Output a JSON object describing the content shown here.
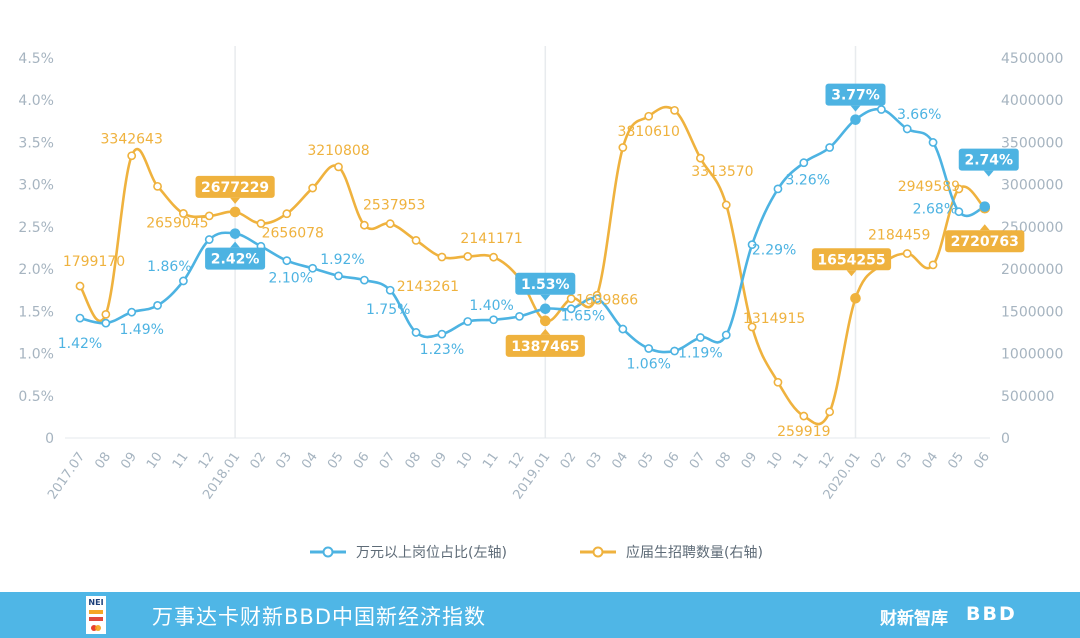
{
  "chart_data": {
    "type": "line",
    "x": [
      "2017.07",
      "08",
      "09",
      "10",
      "11",
      "12",
      "2018.01",
      "02",
      "03",
      "04",
      "05",
      "06",
      "07",
      "08",
      "09",
      "10",
      "11",
      "12",
      "2019.01",
      "02",
      "03",
      "04",
      "05",
      "06",
      "07",
      "08",
      "09",
      "10",
      "11",
      "12",
      "2020.01",
      "02",
      "03",
      "04",
      "05",
      "06"
    ],
    "left_axis": {
      "ticks": [
        "4.5%",
        "4.0%",
        "3.5%",
        "3.0%",
        "2.5%",
        "2.0%",
        "1.5%",
        "1.0%",
        "0.5%",
        "0"
      ],
      "ylim": [
        0,
        4.5
      ]
    },
    "right_axis": {
      "ticks": [
        "4500000",
        "4000000",
        "3500000",
        "3000000",
        "2500000",
        "2000000",
        "1500000",
        "1000000",
        "500000",
        "0"
      ],
      "ylim": [
        0,
        4500000
      ]
    },
    "series": [
      {
        "name": "万元以上岗位占比(左轴)",
        "axis": "left",
        "color": "#4db3e2",
        "values": [
          1.42,
          1.36,
          1.49,
          1.57,
          1.86,
          2.35,
          2.42,
          2.27,
          2.1,
          2.01,
          1.92,
          1.87,
          1.75,
          1.25,
          1.23,
          1.38,
          1.4,
          1.44,
          1.53,
          1.53,
          1.65,
          1.29,
          1.06,
          1.03,
          1.19,
          1.22,
          2.29,
          2.95,
          3.26,
          3.44,
          3.77,
          3.89,
          3.66,
          3.5,
          2.68,
          2.74
        ]
      },
      {
        "name": "应届生招聘数量(右轴)",
        "axis": "right",
        "color": "#efb23e",
        "values": [
          1799170,
          1464000,
          3342643,
          2980000,
          2659045,
          2630000,
          2677229,
          2540000,
          2656078,
          2960000,
          3210808,
          2520000,
          2537953,
          2340000,
          2143261,
          2150000,
          2141171,
          1890000,
          1387465,
          1650000,
          1689866,
          3440000,
          3810610,
          3880000,
          3313570,
          2760000,
          1314915,
          660000,
          259919,
          310000,
          1654255,
          2050000,
          2184459,
          2050000,
          2949589,
          2720763
        ]
      }
    ],
    "value_labels": {
      "left": [
        {
          "i": 0,
          "text": "1.42%",
          "style": "plain"
        },
        {
          "i": 2,
          "text": "1.49%",
          "style": "plain"
        },
        {
          "i": 4,
          "text": "1.86%",
          "style": "plain"
        },
        {
          "i": 6,
          "text": "2.42%",
          "style": "box"
        },
        {
          "i": 8,
          "text": "2.10%",
          "style": "plain"
        },
        {
          "i": 10,
          "text": "1.92%",
          "style": "plain"
        },
        {
          "i": 12,
          "text": "1.75%",
          "style": "plain"
        },
        {
          "i": 14,
          "text": "1.23%",
          "style": "plain"
        },
        {
          "i": 16,
          "text": "1.40%",
          "style": "plain"
        },
        {
          "i": 18,
          "text": "1.53%",
          "style": "box"
        },
        {
          "i": 20,
          "text": "1.65%",
          "style": "plain"
        },
        {
          "i": 22,
          "text": "1.06%",
          "style": "plain"
        },
        {
          "i": 24,
          "text": "1.19%",
          "style": "plain"
        },
        {
          "i": 26,
          "text": "2.29%",
          "style": "plain"
        },
        {
          "i": 28,
          "text": "3.26%",
          "style": "plain"
        },
        {
          "i": 30,
          "text": "3.77%",
          "style": "box"
        },
        {
          "i": 32,
          "text": "3.66%",
          "style": "plain"
        },
        {
          "i": 34,
          "text": "2.68%",
          "style": "plain"
        },
        {
          "i": 35,
          "text": "2.74%",
          "style": "box"
        }
      ],
      "right": [
        {
          "i": 0,
          "text": "1799170",
          "style": "plain"
        },
        {
          "i": 2,
          "text": "3342643",
          "style": "plain"
        },
        {
          "i": 4,
          "text": "2659045",
          "style": "plain"
        },
        {
          "i": 6,
          "text": "2677229",
          "style": "box"
        },
        {
          "i": 8,
          "text": "2656078",
          "style": "plain"
        },
        {
          "i": 10,
          "text": "3210808",
          "style": "plain"
        },
        {
          "i": 12,
          "text": "2537953",
          "style": "plain"
        },
        {
          "i": 14,
          "text": "2143261",
          "style": "plain"
        },
        {
          "i": 16,
          "text": "2141171",
          "style": "plain"
        },
        {
          "i": 18,
          "text": "1387465",
          "style": "box"
        },
        {
          "i": 20,
          "text": "1689866",
          "style": "plain"
        },
        {
          "i": 22,
          "text": "3810610",
          "style": "plain"
        },
        {
          "i": 24,
          "text": "3313570",
          "style": "plain"
        },
        {
          "i": 26,
          "text": "1314915",
          "style": "plain"
        },
        {
          "i": 28,
          "text": "259919",
          "style": "plain"
        },
        {
          "i": 30,
          "text": "1654255",
          "style": "box"
        },
        {
          "i": 32,
          "text": "2184459",
          "style": "plain"
        },
        {
          "i": 34,
          "text": "2949589",
          "style": "plain"
        },
        {
          "i": 35,
          "text": "2720763",
          "style": "box"
        }
      ]
    },
    "highlight_indices": [
      6,
      18,
      30
    ],
    "legend": {
      "placement": "bottom-center"
    },
    "grid": false,
    "colors": {
      "tick_text": "#a6b4c0",
      "axis_line": "#e4e8ec"
    }
  },
  "footer": {
    "title": "万事达卡财新BBD中国新经济指数",
    "logo_text": "NEI",
    "brand_1": "财新智库",
    "brand_2": "BBD",
    "background": "#4fb6e6"
  }
}
